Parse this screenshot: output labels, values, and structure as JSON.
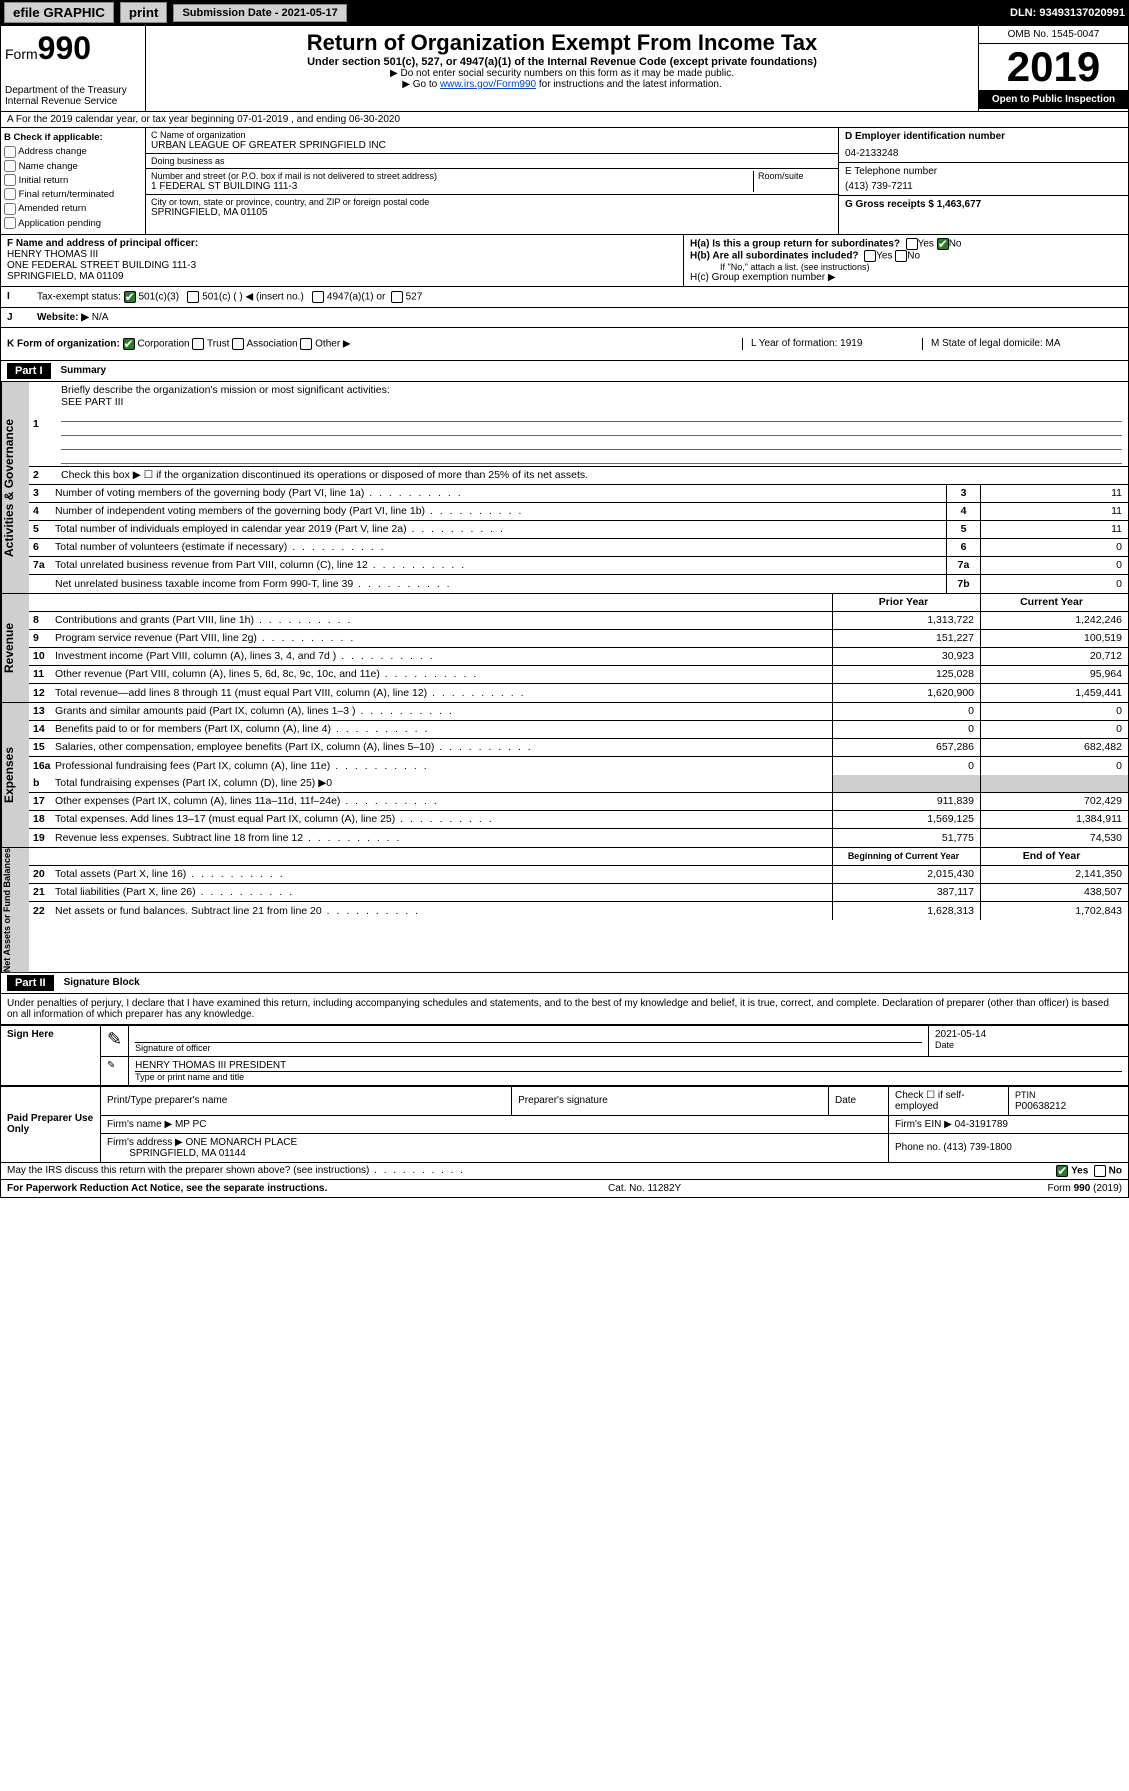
{
  "topbar": {
    "efile": "efile GRAPHIC",
    "print": "print",
    "submission": "Submission Date - 2021-05-17",
    "dln": "DLN: 93493137020991"
  },
  "header": {
    "form_prefix": "Form",
    "form_number": "990",
    "dept": "Department of the Treasury\nInternal Revenue Service",
    "title": "Return of Organization Exempt From Income Tax",
    "subtitle": "Under section 501(c), 527, or 4947(a)(1) of the Internal Revenue Code (except private foundations)",
    "note1": "▶ Do not enter social security numbers on this form as it may be made public.",
    "note2_pre": "▶ Go to ",
    "note2_link": "www.irs.gov/Form990",
    "note2_post": " for instructions and the latest information.",
    "omb": "OMB No. 1545-0047",
    "year": "2019",
    "inspect": "Open to Public Inspection"
  },
  "row_a": "A For the 2019 calendar year, or tax year beginning 07-01-2019 , and ending 06-30-2020",
  "checks": {
    "title": "B Check if applicable:",
    "items": [
      "Address change",
      "Name change",
      "Initial return",
      "Final return/terminated",
      "Amended return",
      "Application pending"
    ]
  },
  "org": {
    "c_label": "C Name of organization",
    "name": "URBAN LEAGUE OF GREATER SPRINGFIELD INC",
    "dba_label": "Doing business as",
    "dba": "",
    "addr_label": "Number and street (or P.O. box if mail is not delivered to street address)",
    "room_label": "Room/suite",
    "addr": "1 FEDERAL ST BUILDING 111-3",
    "city_label": "City or town, state or province, country, and ZIP or foreign postal code",
    "city": "SPRINGFIELD, MA  01105"
  },
  "col_d": {
    "d_label": "D Employer identification number",
    "ein": "04-2133248",
    "e_label": "E Telephone number",
    "phone": "(413) 739-7211",
    "g_label": "G Gross receipts $ 1,463,677"
  },
  "officer": {
    "f_label": "F Name and address of principal officer:",
    "name": "HENRY THOMAS III",
    "addr1": "ONE FEDERAL STREET BUILDING 111-3",
    "addr2": "SPRINGFIELD, MA  01109"
  },
  "h": {
    "a": "H(a) Is this a group return for subordinates?",
    "b": "H(b) Are all subordinates included?",
    "note": "If \"No,\" attach a list. (see instructions)",
    "c": "H(c) Group exemption number ▶"
  },
  "row_i": {
    "label": "Tax-exempt status:",
    "opt1": "501(c)(3)",
    "opt2": "501(c) (   ) ◀ (insert no.)",
    "opt3": "4947(a)(1) or",
    "opt4": "527"
  },
  "row_j": {
    "label": "Website: ▶",
    "val": "N/A"
  },
  "row_k": {
    "k": "K Form of organization:",
    "corp": "Corporation",
    "trust": "Trust",
    "assoc": "Association",
    "other": "Other ▶",
    "l": "L Year of formation: 1919",
    "m": "M State of legal domicile: MA"
  },
  "part1": {
    "label": "Part I",
    "title": "Summary"
  },
  "summary_lines": {
    "l1": "Briefly describe the organization's mission or most significant activities:",
    "l1v": "SEE PART III",
    "l2": "Check this box ▶ ☐ if the organization discontinued its operations or disposed of more than 25% of its net assets.",
    "l3": "Number of voting members of the governing body (Part VI, line 1a)",
    "l4": "Number of independent voting members of the governing body (Part VI, line 1b)",
    "l5": "Total number of individuals employed in calendar year 2019 (Part V, line 2a)",
    "l6": "Total number of volunteers (estimate if necessary)",
    "l7a": "Total unrelated business revenue from Part VIII, column (C), line 12",
    "l7b": "Net unrelated business taxable income from Form 990-T, line 39"
  },
  "summary_vals": {
    "l3": "11",
    "l4": "11",
    "l5": "11",
    "l6": "0",
    "l7a": "0",
    "l7b": "0"
  },
  "cols": {
    "prior": "Prior Year",
    "current": "Current Year",
    "boy": "Beginning of Current Year",
    "eoy": "End of Year"
  },
  "sidebars": {
    "ag": "Activities & Governance",
    "rev": "Revenue",
    "exp": "Expenses",
    "na": "Net Assets or Fund Balances"
  },
  "revenue": [
    {
      "n": "8",
      "d": "Contributions and grants (Part VIII, line 1h)",
      "p": "1,313,722",
      "c": "1,242,246"
    },
    {
      "n": "9",
      "d": "Program service revenue (Part VIII, line 2g)",
      "p": "151,227",
      "c": "100,519"
    },
    {
      "n": "10",
      "d": "Investment income (Part VIII, column (A), lines 3, 4, and 7d )",
      "p": "30,923",
      "c": "20,712"
    },
    {
      "n": "11",
      "d": "Other revenue (Part VIII, column (A), lines 5, 6d, 8c, 9c, 10c, and 11e)",
      "p": "125,028",
      "c": "95,964"
    },
    {
      "n": "12",
      "d": "Total revenue—add lines 8 through 11 (must equal Part VIII, column (A), line 12)",
      "p": "1,620,900",
      "c": "1,459,441"
    }
  ],
  "expenses": [
    {
      "n": "13",
      "d": "Grants and similar amounts paid (Part IX, column (A), lines 1–3 )",
      "p": "0",
      "c": "0"
    },
    {
      "n": "14",
      "d": "Benefits paid to or for members (Part IX, column (A), line 4)",
      "p": "0",
      "c": "0"
    },
    {
      "n": "15",
      "d": "Salaries, other compensation, employee benefits (Part IX, column (A), lines 5–10)",
      "p": "657,286",
      "c": "682,482"
    },
    {
      "n": "16a",
      "d": "Professional fundraising fees (Part IX, column (A), line 11e)",
      "p": "0",
      "c": "0"
    }
  ],
  "exp_b": "Total fundraising expenses (Part IX, column (D), line 25) ▶0",
  "expenses2": [
    {
      "n": "17",
      "d": "Other expenses (Part IX, column (A), lines 11a–11d, 11f–24e)",
      "p": "911,839",
      "c": "702,429"
    },
    {
      "n": "18",
      "d": "Total expenses. Add lines 13–17 (must equal Part IX, column (A), line 25)",
      "p": "1,569,125",
      "c": "1,384,911"
    },
    {
      "n": "19",
      "d": "Revenue less expenses. Subtract line 18 from line 12",
      "p": "51,775",
      "c": "74,530"
    }
  ],
  "netassets": [
    {
      "n": "20",
      "d": "Total assets (Part X, line 16)",
      "p": "2,015,430",
      "c": "2,141,350"
    },
    {
      "n": "21",
      "d": "Total liabilities (Part X, line 26)",
      "p": "387,117",
      "c": "438,507"
    },
    {
      "n": "22",
      "d": "Net assets or fund balances. Subtract line 21 from line 20",
      "p": "1,628,313",
      "c": "1,702,843"
    }
  ],
  "part2": {
    "label": "Part II",
    "title": "Signature Block"
  },
  "perjury": "Under penalties of perjury, I declare that I have examined this return, including accompanying schedules and statements, and to the best of my knowledge and belief, it is true, correct, and complete. Declaration of preparer (other than officer) is based on all information of which preparer has any knowledge.",
  "sign": {
    "here": "Sign Here",
    "sig": "Signature of officer",
    "date": "2021-05-14",
    "date_l": "Date",
    "name": "HENRY THOMAS III PRESIDENT",
    "name_l": "Type or print name and title"
  },
  "paid": {
    "title": "Paid Preparer Use Only",
    "h1": "Print/Type preparer's name",
    "h2": "Preparer's signature",
    "h3": "Date",
    "h4": "Check ☐ if self-employed",
    "h5": "PTIN",
    "ptin": "P00638212",
    "firm_l": "Firm's name ▶",
    "firm": "MP PC",
    "ein_l": "Firm's EIN ▶",
    "ein": "04-3191789",
    "addr_l": "Firm's address ▶",
    "addr": "ONE MONARCH PLACE",
    "addr2": "SPRINGFIELD, MA  01144",
    "phone_l": "Phone no.",
    "phone": "(413) 739-1800"
  },
  "discuss": "May the IRS discuss this return with the preparer shown above? (see instructions)",
  "footer": {
    "l": "For Paperwork Reduction Act Notice, see the separate instructions.",
    "c": "Cat. No. 11282Y",
    "r": "Form 990 (2019)"
  },
  "yn": {
    "yes": "Yes",
    "no": "No"
  }
}
